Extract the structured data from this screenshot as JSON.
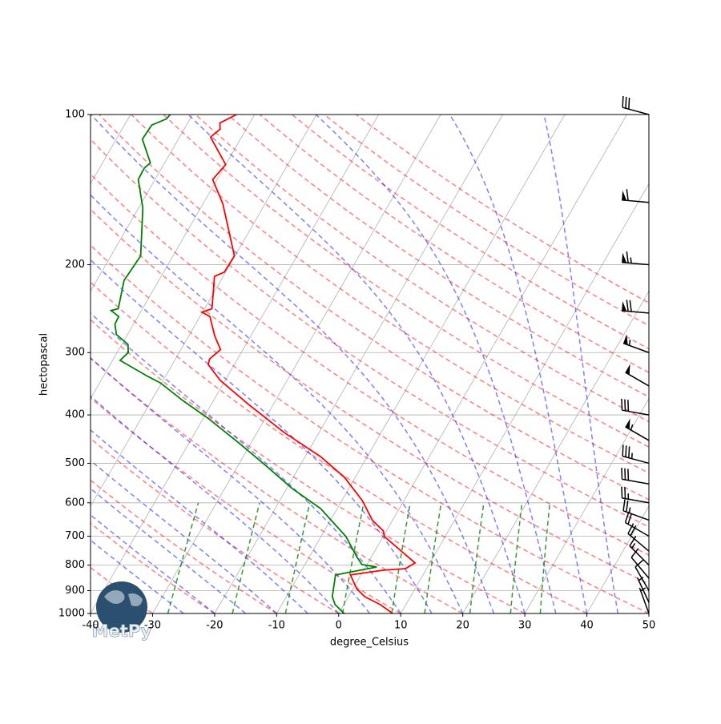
{
  "chart_data": {
    "type": "skewt",
    "xlabel": "degree_Celsius",
    "ylabel": "hectopascal",
    "logo": "MetPy",
    "xlim": [
      -40,
      50
    ],
    "ylim": [
      1000,
      100
    ],
    "xticks": [
      -40,
      -30,
      -20,
      -10,
      0,
      10,
      20,
      30,
      40,
      50
    ],
    "yticks": [
      100,
      200,
      300,
      400,
      500,
      600,
      700,
      800,
      900,
      1000
    ],
    "log_y": true,
    "grid": true,
    "profiles": [
      {
        "color": "#ff0000",
        "pressure": [
          1000,
          960,
          925,
          892,
          837,
          819,
          813,
          792,
          701,
          683,
          651,
          594,
          534,
          485,
          434,
          381,
          341,
          317,
          309,
          296,
          278,
          254,
          249,
          245,
          211,
          207,
          192,
          151,
          135,
          126,
          111,
          107,
          104,
          100
        ],
        "values": [
          8.7,
          5.9,
          2.6,
          0.6,
          -1.7,
          3.1,
          6.6,
          7.6,
          0.2,
          -0.5,
          -3.2,
          -6.7,
          -11.7,
          -17.5,
          -25.6,
          -34.0,
          -40.8,
          -44.2,
          -44.5,
          -43.6,
          -45.8,
          -48.4,
          -50.1,
          -48.8,
          -51.4,
          -50.2,
          -50.1,
          -56.8,
          -60.7,
          -60.0,
          -65.0,
          -64.2,
          -64.8,
          -62.9
        ]
      },
      {
        "color": "#008000",
        "pressure": [
          1000,
          960,
          925,
          837,
          807,
          798,
          769,
          701,
          616,
          562,
          503,
          455,
          407,
          374,
          345,
          335,
          311,
          300,
          289,
          276,
          263,
          254,
          247,
          245,
          215,
          192,
          154,
          135,
          128,
          125,
          112,
          105,
          102,
          100
        ],
        "values": [
          0.9,
          -1.4,
          -2.6,
          -4.1,
          1.8,
          -0.8,
          -2.4,
          -6.0,
          -12.7,
          -19.1,
          -25.8,
          -32.0,
          -39.1,
          -45.0,
          -50.2,
          -52.8,
          -58.8,
          -58.2,
          -59.0,
          -61.8,
          -63.0,
          -63.1,
          -64.9,
          -63.9,
          -65.6,
          -65.2,
          -69.3,
          -72.7,
          -72.8,
          -72.3,
          -75.8,
          -75.6,
          -73.8,
          -73.6
        ]
      }
    ],
    "wind": {
      "pressure": [
        100,
        150,
        200,
        250,
        300,
        350,
        400,
        450,
        500,
        550,
        600,
        650,
        700,
        750,
        800,
        850,
        900,
        950,
        1000
      ],
      "speed": [
        30,
        60,
        65,
        70,
        55,
        50,
        30,
        55,
        35,
        30,
        25,
        25,
        20,
        20,
        15,
        10,
        10,
        5,
        5
      ],
      "direction": [
        285,
        275,
        275,
        275,
        290,
        300,
        280,
        300,
        285,
        280,
        280,
        290,
        300,
        310,
        315,
        320,
        330,
        335,
        340
      ]
    }
  }
}
